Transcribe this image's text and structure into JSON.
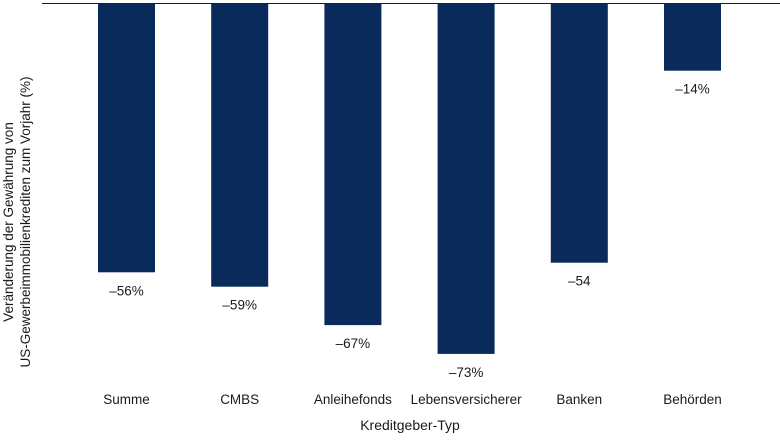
{
  "chart_data": {
    "type": "bar",
    "categories": [
      "Summe",
      "CMBS",
      "Anleihefonds",
      "Lebensversicherer",
      "Banken",
      "Behörden"
    ],
    "values": [
      -56,
      -59,
      -67,
      -73,
      -54,
      -14
    ],
    "data_labels": [
      "-56%",
      "-59%",
      "-67%",
      "-73%",
      "-54",
      "-14%"
    ],
    "xlabel": "Kreditgeber-Typ",
    "ylabel_line1": "Veränderung der Gewährung von",
    "ylabel_line2": "US-Gewerbeimmobilienkrediten zum Vorjahr (%)",
    "ylim": [
      -75,
      0
    ],
    "grid": false,
    "legend": "none",
    "bar_color": "#0b2a5c"
  }
}
